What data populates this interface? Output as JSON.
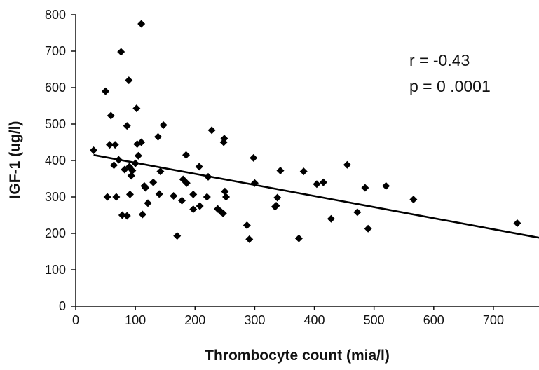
{
  "chart_data": {
    "type": "scatter",
    "title": "",
    "xlabel": "Thrombocyte count (mia/l)",
    "ylabel": "IGF-1 (ug/l)",
    "xlim": [
      0,
      740
    ],
    "ylim": [
      0,
      800
    ],
    "x_ticks": [
      0,
      100,
      200,
      300,
      400,
      500,
      600,
      700
    ],
    "y_ticks": [
      0,
      100,
      200,
      300,
      400,
      500,
      600,
      700,
      800
    ],
    "grid": false,
    "legend": "none",
    "annotations": [
      "r =  -0.43",
      "p = 0 .0001"
    ],
    "marker": "diamond",
    "color": "#000000",
    "trendline": {
      "x": [
        30,
        740
      ],
      "y": [
        415,
        188
      ]
    },
    "points": [
      [
        30,
        428
      ],
      [
        50,
        590
      ],
      [
        53,
        300
      ],
      [
        57,
        443
      ],
      [
        59,
        523
      ],
      [
        64,
        387
      ],
      [
        66,
        443
      ],
      [
        68,
        300
      ],
      [
        72,
        402
      ],
      [
        76,
        698
      ],
      [
        78,
        250
      ],
      [
        82,
        375
      ],
      [
        86,
        495
      ],
      [
        86,
        248
      ],
      [
        89,
        620
      ],
      [
        90,
        383
      ],
      [
        91,
        307
      ],
      [
        93,
        358
      ],
      [
        95,
        372
      ],
      [
        100,
        392
      ],
      [
        102,
        543
      ],
      [
        103,
        445
      ],
      [
        105,
        413
      ],
      [
        110,
        775
      ],
      [
        110,
        450
      ],
      [
        112,
        252
      ],
      [
        115,
        330
      ],
      [
        117,
        325
      ],
      [
        121,
        283
      ],
      [
        130,
        340
      ],
      [
        138,
        465
      ],
      [
        140,
        308
      ],
      [
        142,
        370
      ],
      [
        147,
        497
      ],
      [
        164,
        303
      ],
      [
        170,
        193
      ],
      [
        178,
        290
      ],
      [
        180,
        348
      ],
      [
        185,
        415
      ],
      [
        186,
        338
      ],
      [
        197,
        307
      ],
      [
        197,
        266
      ],
      [
        207,
        383
      ],
      [
        208,
        275
      ],
      [
        220,
        300
      ],
      [
        222,
        355
      ],
      [
        228,
        483
      ],
      [
        238,
        267
      ],
      [
        243,
        260
      ],
      [
        247,
        255
      ],
      [
        248,
        450
      ],
      [
        249,
        460
      ],
      [
        250,
        315
      ],
      [
        252,
        300
      ],
      [
        287,
        222
      ],
      [
        291,
        184
      ],
      [
        298,
        407
      ],
      [
        300,
        338
      ],
      [
        334,
        273
      ],
      [
        336,
        276
      ],
      [
        338,
        298
      ],
      [
        343,
        372
      ],
      [
        374,
        186
      ],
      [
        382,
        370
      ],
      [
        404,
        335
      ],
      [
        415,
        340
      ],
      [
        428,
        240
      ],
      [
        455,
        388
      ],
      [
        472,
        258
      ],
      [
        485,
        325
      ],
      [
        490,
        213
      ],
      [
        520,
        330
      ],
      [
        566,
        293
      ],
      [
        740,
        228
      ]
    ]
  }
}
